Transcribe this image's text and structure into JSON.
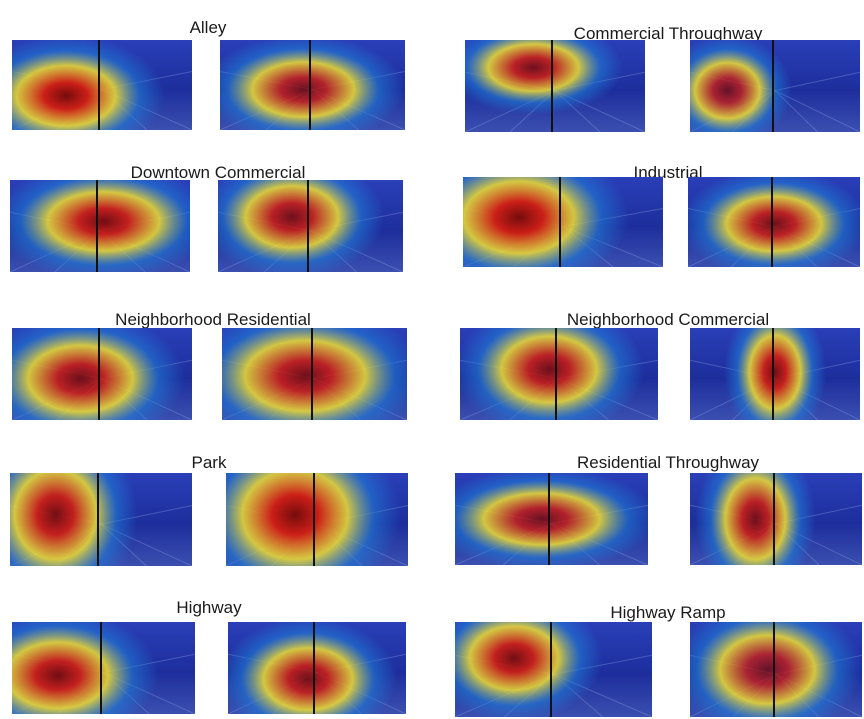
{
  "panels": [
    {
      "title": "Alley",
      "heat": [
        [
          0.3,
          0.62,
          0.55,
          0.42,
          1.0
        ],
        [
          0.45,
          0.55,
          0.55,
          0.38,
          0.85
        ]
      ]
    },
    {
      "title": "Commercial Throughway",
      "heat": [
        [
          0.38,
          0.3,
          0.5,
          0.32,
          0.9
        ],
        [
          0.22,
          0.55,
          0.38,
          0.38,
          0.8
        ]
      ]
    },
    {
      "title": "Downtown Commercial",
      "heat": [
        [
          0.52,
          0.45,
          0.62,
          0.4,
          0.95
        ],
        [
          0.4,
          0.4,
          0.5,
          0.42,
          0.9
        ]
      ]
    },
    {
      "title": "Industrial",
      "heat": [
        [
          0.28,
          0.45,
          0.55,
          0.5,
          1.0
        ],
        [
          0.5,
          0.52,
          0.55,
          0.38,
          0.9
        ]
      ]
    },
    {
      "title": "Neighborhood Residential",
      "heat": [
        [
          0.38,
          0.55,
          0.58,
          0.45,
          0.9
        ],
        [
          0.45,
          0.52,
          0.65,
          0.48,
          0.9
        ]
      ]
    },
    {
      "title": "Neighborhood Commercial",
      "heat": [
        [
          0.45,
          0.45,
          0.48,
          0.45,
          0.9
        ],
        [
          0.5,
          0.48,
          0.3,
          0.5,
          0.95
        ]
      ]
    },
    {
      "title": "Park",
      "heat": [
        [
          0.25,
          0.45,
          0.45,
          0.6,
          0.95
        ],
        [
          0.38,
          0.45,
          0.58,
          0.6,
          1.0
        ]
      ]
    },
    {
      "title": "Residential Throughway",
      "heat": [
        [
          0.45,
          0.5,
          0.6,
          0.35,
          0.85
        ],
        [
          0.38,
          0.5,
          0.35,
          0.55,
          0.9
        ]
      ]
    },
    {
      "title": "Highway",
      "heat": [
        [
          0.25,
          0.58,
          0.55,
          0.45,
          0.95
        ],
        [
          0.45,
          0.62,
          0.5,
          0.42,
          0.9
        ]
      ]
    },
    {
      "title": "Highway Ramp",
      "heat": [
        [
          0.3,
          0.38,
          0.45,
          0.42,
          0.95
        ],
        [
          0.45,
          0.5,
          0.55,
          0.45,
          0.8
        ]
      ]
    }
  ],
  "colors": {
    "cold": "#1e2fa8",
    "cool": "#1f7bd6",
    "warm": "#f2e030",
    "hot": "#d41d10",
    "core": "#7a0a05"
  }
}
